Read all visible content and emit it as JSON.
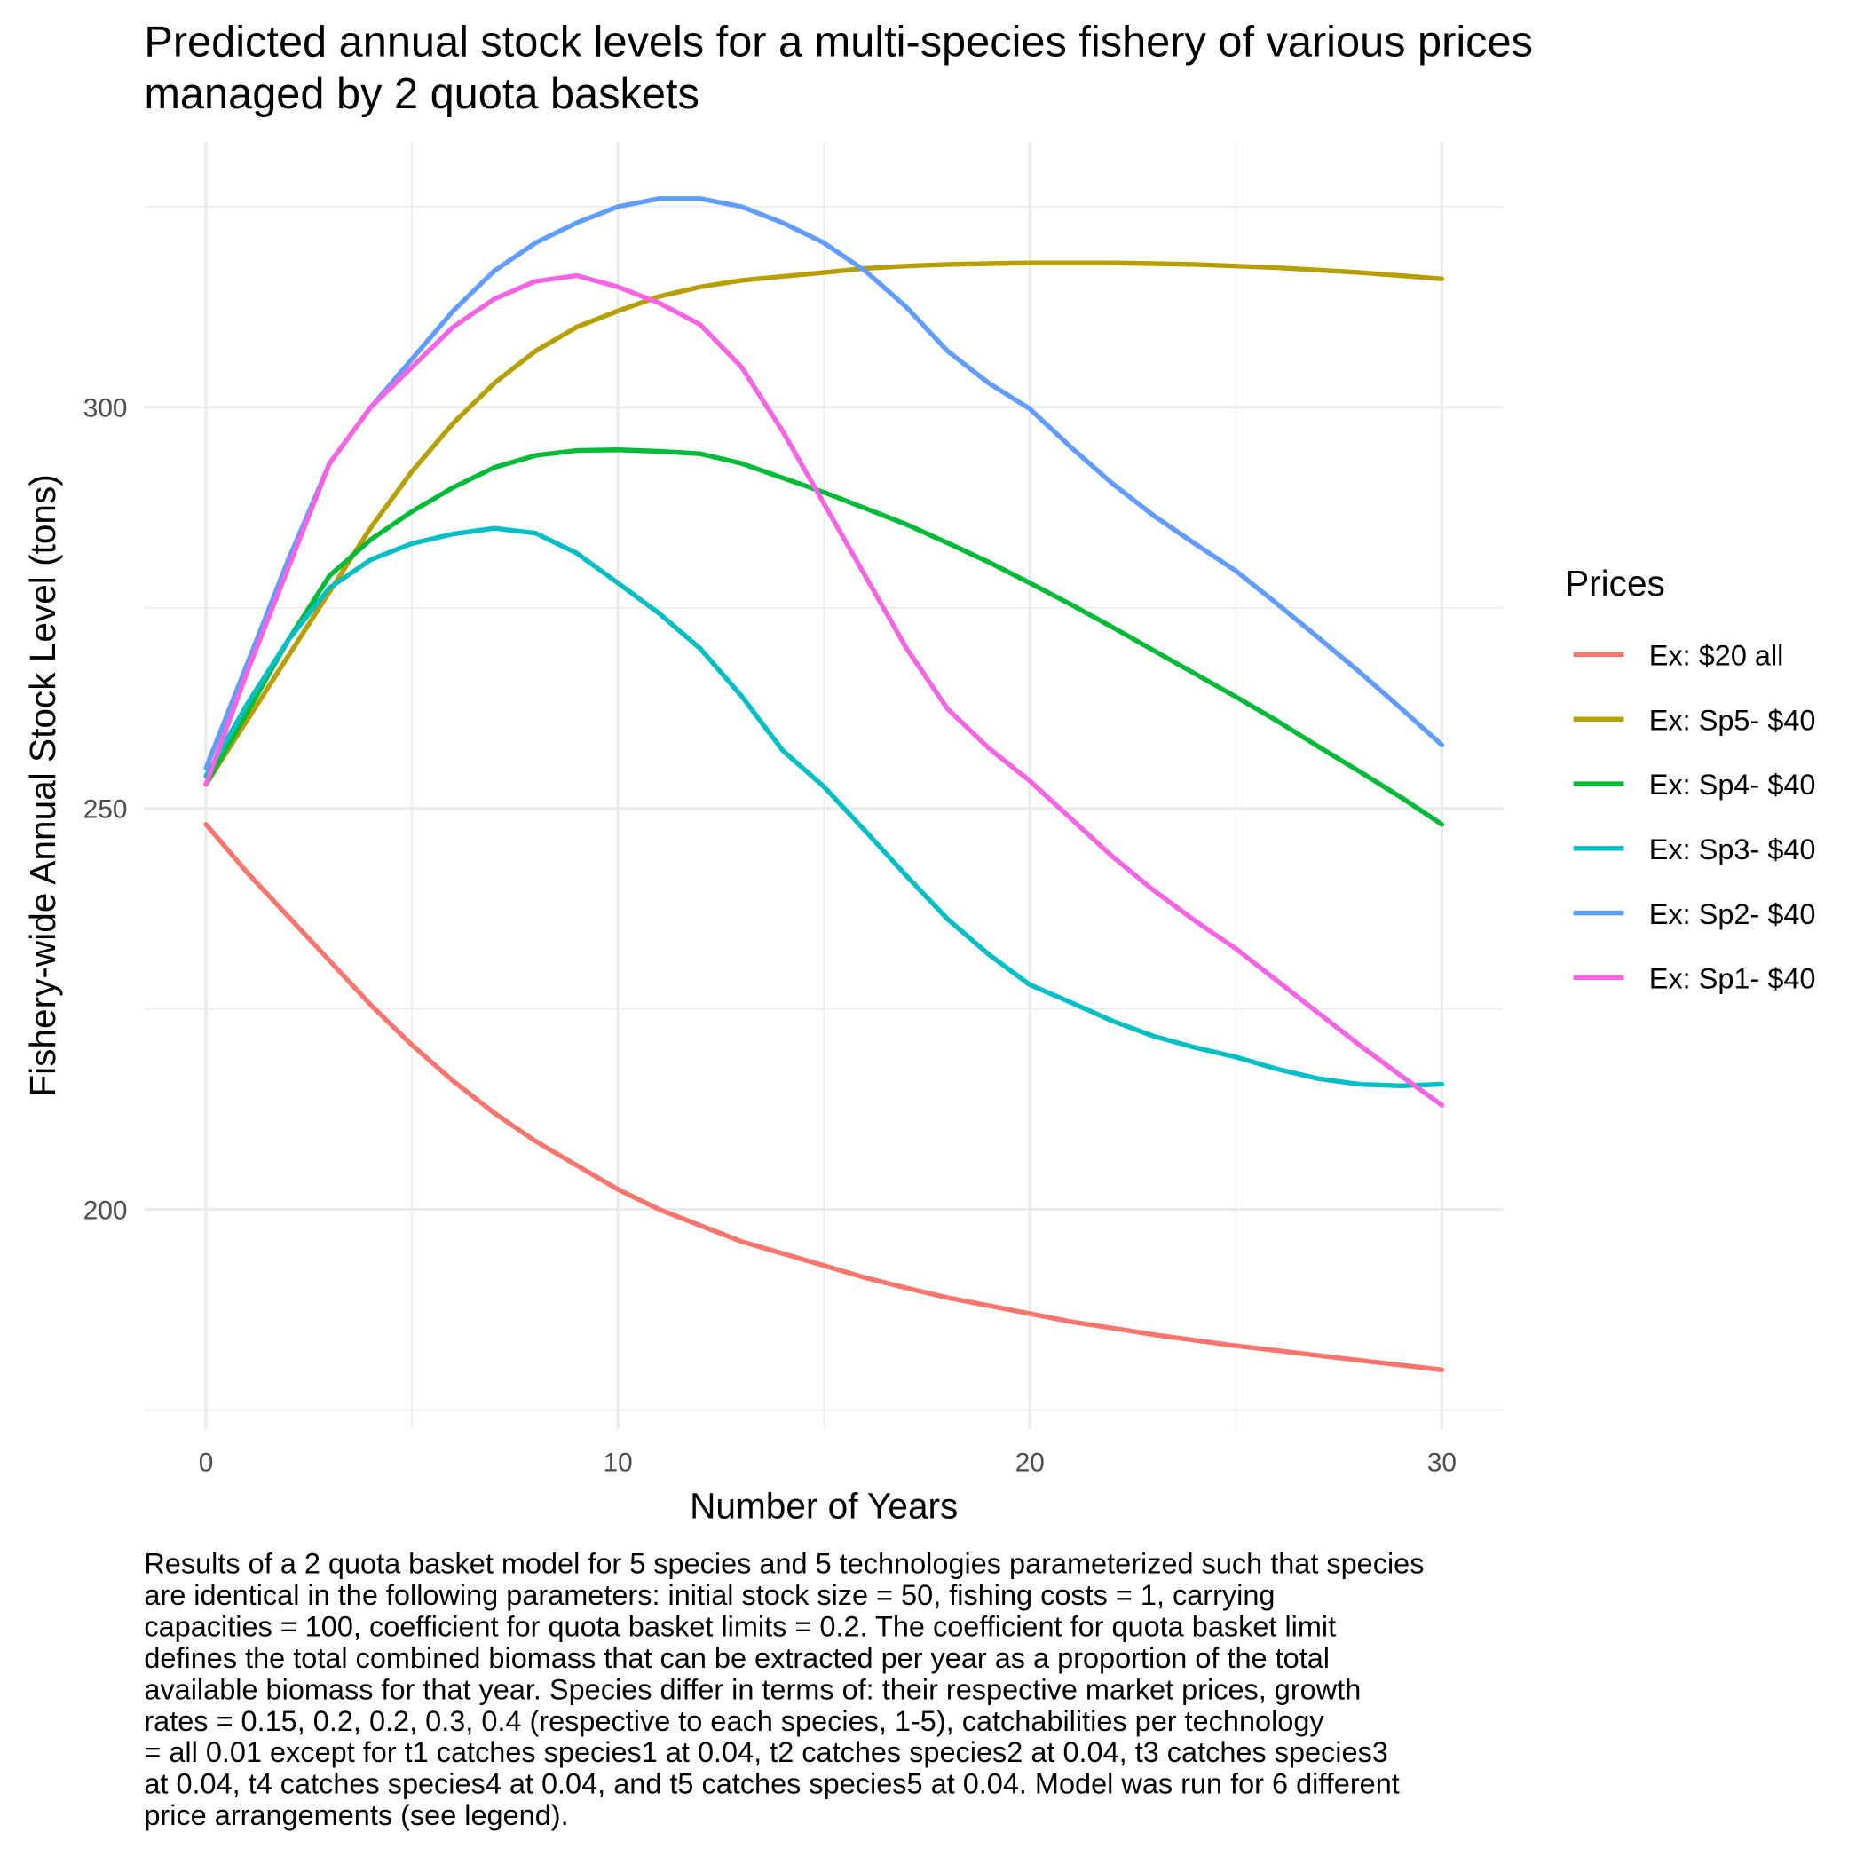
{
  "chart_data": {
    "type": "line",
    "title": [
      "Predicted annual stock levels for a multi-species fishery of various prices",
      "managed by 2 quota baskets"
    ],
    "x_label": "Number of Years",
    "y_label": "Fishery-wide Annual Stock Level (tons)",
    "legend_title": "Prices",
    "legend_position": "right",
    "grid": true,
    "x": [
      0,
      1,
      2,
      3,
      4,
      5,
      6,
      7,
      8,
      9,
      10,
      11,
      12,
      13,
      14,
      15,
      16,
      17,
      18,
      19,
      20,
      21,
      22,
      23,
      24,
      25,
      26,
      27,
      28,
      29,
      30
    ],
    "xlim": [
      -1.5,
      31.5
    ],
    "xticks": [
      0,
      10,
      20,
      30
    ],
    "xminor": [
      5,
      15,
      25
    ],
    "ylim": [
      172.6,
      333.1
    ],
    "yticks": [
      200,
      250,
      300
    ],
    "yminor": [
      175,
      225,
      275,
      325
    ],
    "series": [
      {
        "name": "Ex: $20 all",
        "color": "#F8766D",
        "values": [
          248,
          242,
          236.5,
          231,
          225.5,
          220.5,
          216,
          212,
          208.5,
          205.5,
          202.5,
          200,
          198,
          196,
          194.5,
          193,
          191.5,
          190.2,
          189,
          188,
          187,
          186,
          185.2,
          184.4,
          183.7,
          183,
          182.4,
          181.8,
          181.2,
          180.6,
          180
        ]
      },
      {
        "name": "Ex: Sp5- $40",
        "color": "#B79F00",
        "values": [
          253,
          261,
          269,
          277,
          285,
          292,
          298,
          303,
          307,
          310,
          312,
          313.8,
          315,
          315.8,
          316.3,
          316.8,
          317.3,
          317.6,
          317.8,
          317.9,
          318,
          318,
          318,
          317.9,
          317.8,
          317.6,
          317.4,
          317.1,
          316.8,
          316.4,
          316
        ]
      },
      {
        "name": "Ex: Sp4- $40",
        "color": "#00BA38",
        "values": [
          253,
          262,
          271,
          279,
          283.5,
          287,
          290,
          292.5,
          294,
          294.6,
          294.7,
          294.5,
          294.2,
          293,
          291.2,
          289.4,
          287.4,
          285.4,
          283.1,
          280.7,
          278.1,
          275.4,
          272.6,
          269.7,
          266.8,
          263.9,
          260.9,
          257.7,
          254.6,
          251.4,
          248
        ]
      },
      {
        "name": "Ex: Sp3- $40",
        "color": "#00BFC4",
        "values": [
          254,
          263,
          271,
          277.5,
          281,
          283,
          284.2,
          284.9,
          284.3,
          281.8,
          278.1,
          274.3,
          269.9,
          264,
          257.2,
          252.7,
          247.2,
          241.6,
          236.2,
          231.8,
          228,
          225.8,
          223.5,
          221.6,
          220.2,
          219,
          217.5,
          216.3,
          215.6,
          215.4,
          215.6
        ]
      },
      {
        "name": "Ex: Sp2- $40",
        "color": "#619CFF",
        "values": [
          255,
          268,
          281,
          293,
          300,
          306,
          312,
          317,
          320.5,
          323,
          325,
          326,
          326,
          325,
          323,
          320.5,
          317,
          312.5,
          307,
          303,
          299.8,
          295,
          290.5,
          286.5,
          283,
          279.6,
          275.5,
          271.3,
          267,
          262.5,
          257.9
        ]
      },
      {
        "name": "Ex: Sp1- $40",
        "color": "#F564E3",
        "values": [
          253,
          267,
          280,
          293,
          300,
          305,
          310,
          313.5,
          315.7,
          316.4,
          315,
          313,
          310.3,
          305,
          297,
          288,
          279,
          270,
          262.4,
          257.5,
          253.4,
          248.7,
          244,
          239.8,
          236,
          232.5,
          228.5,
          224.5,
          220.5,
          216.7,
          213
        ]
      }
    ],
    "caption": [
      "Results of a 2 quota basket model for 5 species and 5 technologies parameterized such that species",
      "are identical in the following parameters: initial stock size = 50, fishing costs = 1, carrying",
      "capacities = 100, coefficient for quota basket limits = 0.2. The coefficient for quota basket limit",
      "defines the total combined biomass that can be extracted per year as a proportion of the total",
      "available biomass for that year. Species differ in terms of: their respective market prices, growth",
      "rates = 0.15, 0.2, 0.2, 0.3, 0.4 (respective to each species, 1-5), catchabilities per technology",
      "= all 0.01 except for t1 catches species1 at 0.04, t2 catches species2 at 0.04, t3 catches species3",
      "at 0.04, t4 catches species4 at 0.04, and t5 catches species5 at 0.04. Model was run for 6 different",
      "price arrangements (see legend)."
    ]
  }
}
